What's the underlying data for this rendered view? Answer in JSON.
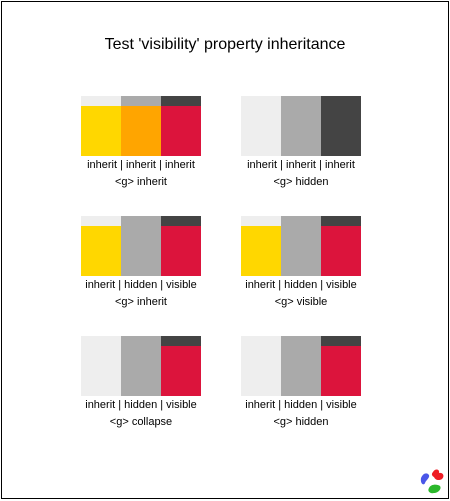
{
  "title": "Test 'visibility' property inheritance",
  "colors": {
    "light": "#eeeeee",
    "mid": "#aaaaaa",
    "dark": "#444444",
    "yellow": "#ffd700",
    "orange": "#ffa500",
    "crimson": "#dc143c"
  },
  "tests": [
    {
      "line1": "inherit | inherit | inherit",
      "line2": "<g> inherit",
      "foreground_visible": [
        true,
        true,
        true
      ],
      "foreground_colors": [
        "#ffd700",
        "#ffa500",
        "#dc143c"
      ]
    },
    {
      "line1": "inherit | inherit | inherit",
      "line2": "<g> hidden",
      "foreground_visible": [
        false,
        false,
        false
      ],
      "foreground_colors": [
        "#ffd700",
        "#ffa500",
        "#dc143c"
      ]
    },
    {
      "line1": "inherit | hidden | visible",
      "line2": "<g> inherit",
      "foreground_visible": [
        true,
        false,
        true
      ],
      "foreground_colors": [
        "#ffd700",
        "#ffa500",
        "#dc143c"
      ]
    },
    {
      "line1": "inherit | hidden | visible",
      "line2": "<g> visible",
      "foreground_visible": [
        true,
        false,
        true
      ],
      "foreground_colors": [
        "#ffd700",
        "#ffa500",
        "#dc143c"
      ]
    },
    {
      "line1": "inherit | hidden | visible",
      "line2": "<g> collapse",
      "foreground_visible": [
        false,
        false,
        true
      ],
      "foreground_colors": [
        "#ffd700",
        "#ffa500",
        "#dc143c"
      ]
    },
    {
      "line1": "inherit | hidden | visible",
      "line2": "<g> hidden",
      "foreground_visible": [
        false,
        false,
        true
      ],
      "foreground_colors": [
        "#ffd700",
        "#ffa500",
        "#dc143c"
      ]
    }
  ],
  "logo_icon": "svg-logo-icon"
}
